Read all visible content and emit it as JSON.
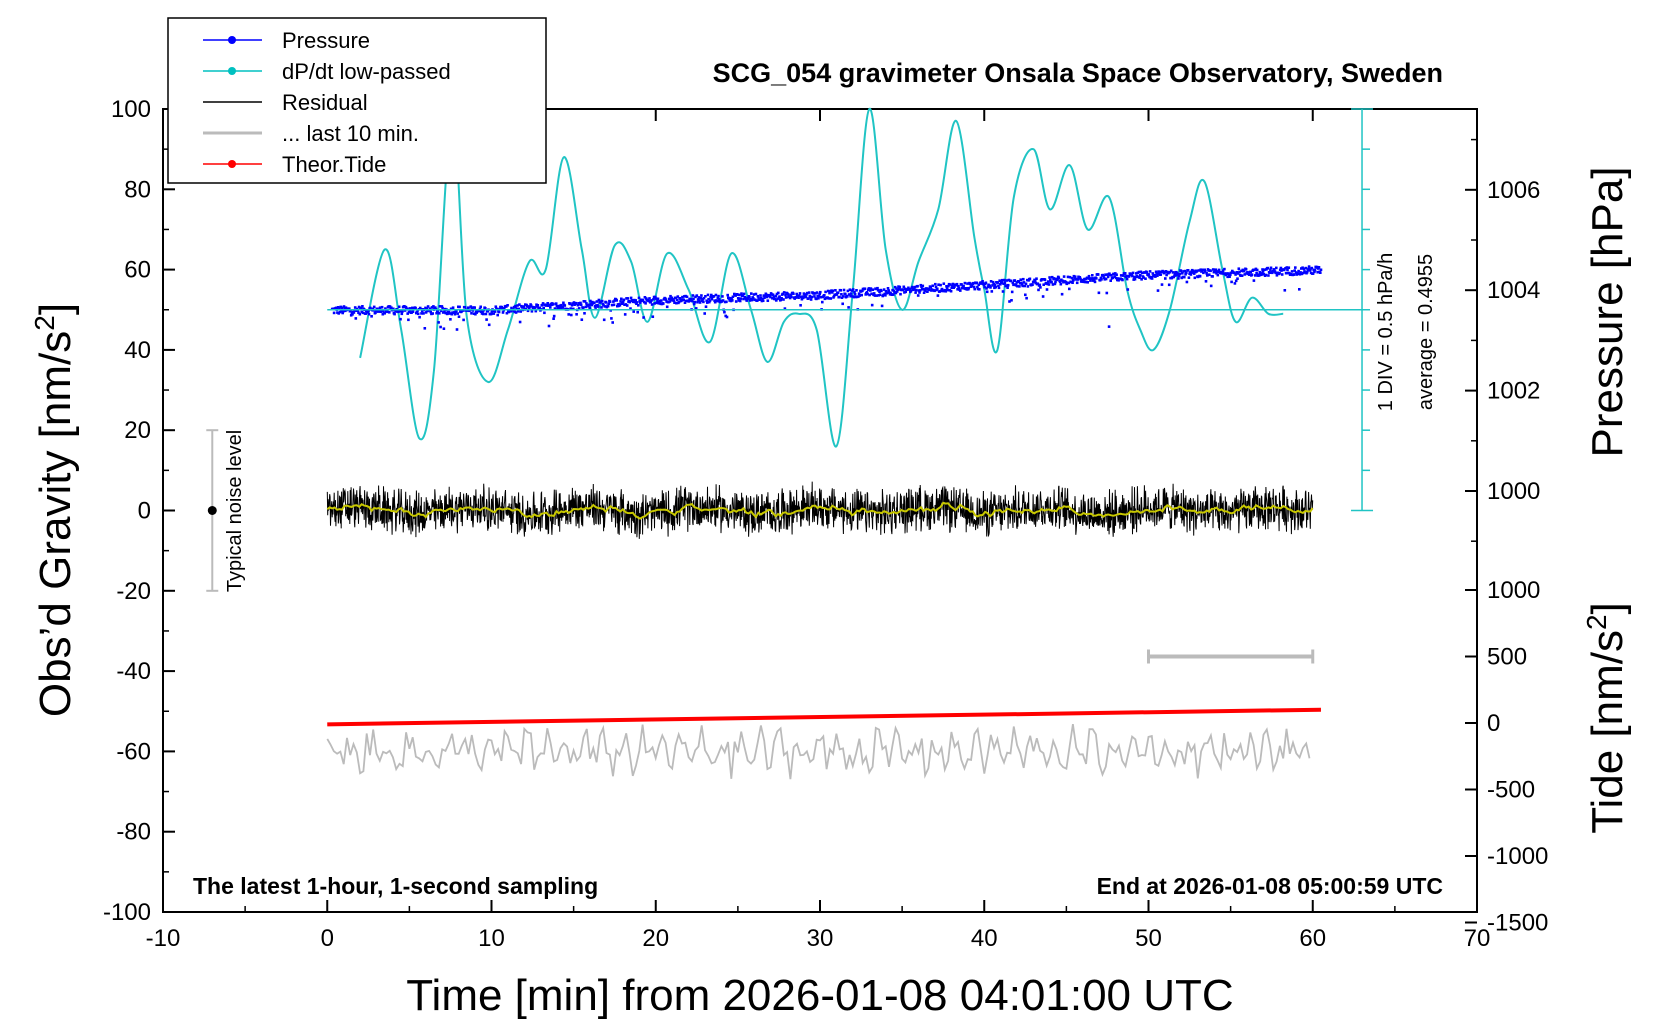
{
  "chart_data": {
    "type": "line",
    "title": "SCG_054 gravimeter Onsala Space Observatory, Sweden",
    "xlabel": "Time [min] from 2026-01-08 04:01:00 UTC",
    "ylabel_left": "Obs’d Gravity [nm/s",
    "ylabel_left_sup": "2",
    "ylabel_left_end": "]",
    "ylabel_right_top": "Pressure [hPa]",
    "ylabel_right_bottom": "Tide [nm/s",
    "ylabel_right_bottom_sup": "2",
    "ylabel_right_bottom_end": "]",
    "xlim": [
      -10,
      70
    ],
    "ylim": [
      -100,
      100
    ],
    "pressure_lim": [
      999,
      1007
    ],
    "tide_lim": [
      -1500,
      1500
    ],
    "x_ticks": [
      "-10",
      "0",
      "10",
      "20",
      "30",
      "40",
      "50",
      "60",
      "70"
    ],
    "x_tick_values": [
      -10,
      0,
      10,
      20,
      30,
      40,
      50,
      60,
      70
    ],
    "y_ticks": [
      "100",
      "80",
      "60",
      "40",
      "20",
      "0",
      "-20",
      "-40",
      "-60",
      "-80",
      "-100"
    ],
    "y_tick_values": [
      100,
      80,
      60,
      40,
      20,
      0,
      -20,
      -40,
      -60,
      -80,
      -100
    ],
    "pressure_ticks": [
      "1006",
      "1004",
      "1002",
      "1000"
    ],
    "pressure_tick_values": [
      1006,
      1004,
      1002,
      1000
    ],
    "tide_ticks": [
      "1000",
      "500",
      "0",
      "-500",
      "-1000",
      "-1500"
    ],
    "tide_tick_values": [
      1000,
      500,
      0,
      -500,
      -1000,
      -1500
    ],
    "legend": [
      {
        "label": "Pressure",
        "color": "#0000ff",
        "marker": true
      },
      {
        "label": "dP/dt low-passed",
        "color": "#00c0c0",
        "marker": true
      },
      {
        "label": "Residual",
        "color": "#000000",
        "marker": false
      },
      {
        "label": "... last 10 min.",
        "color": "#bbbbbb",
        "marker": false
      },
      {
        "label": "Theor.Tide",
        "color": "#ff0000",
        "marker": true
      }
    ],
    "colors": {
      "pressure": "#0000ff",
      "dpdt": "#20c4c4",
      "residual": "#000000",
      "residual_smooth": "#c8c800",
      "last10": "#bbbbbb",
      "tide": "#ff0000",
      "noise_bar": "#bbbbbb"
    },
    "series": [
      {
        "name": "Pressure",
        "unit": "hPa",
        "x": [
          0.5,
          10,
          20,
          30,
          40,
          50,
          60.5
        ],
        "values": [
          1003.6,
          1003.6,
          1003.8,
          1003.9,
          1004.1,
          1004.3,
          1004.4
        ]
      },
      {
        "name": "dP/dt low-passed",
        "unit": "gravity-axis units (1 DIV = 0.5 hPa/h)",
        "x": [
          2.0,
          3.5,
          4.5,
          5.6,
          6.5,
          7.6,
          8.5,
          9.8,
          11.0,
          12.3,
          13.3,
          14.4,
          15.5,
          16.3,
          17.5,
          18.5,
          19.5,
          20.7,
          22.0,
          23.3,
          24.6,
          25.8,
          26.8,
          27.8,
          28.7,
          29.8,
          31.0,
          32.0,
          33.0,
          34.0,
          35.0,
          36.0,
          37.2,
          38.3,
          39.4,
          40.0,
          40.8,
          41.8,
          43.0,
          44.0,
          45.2,
          46.3,
          47.6,
          48.7,
          49.5,
          50.3,
          51.3,
          52.5,
          53.4,
          54.5,
          55.3,
          56.3,
          57.3,
          58.2
        ],
        "values": [
          38,
          65,
          45,
          18,
          35,
          98,
          48,
          32,
          45,
          62,
          60,
          88,
          65,
          48,
          66,
          62,
          47,
          64,
          55,
          42,
          64,
          50,
          37,
          47,
          49,
          45,
          16,
          55,
          100,
          65,
          50,
          62,
          75,
          97,
          68,
          55,
          40,
          78,
          90,
          75,
          86,
          70,
          78,
          55,
          45,
          40,
          50,
          72,
          82,
          60,
          47,
          53,
          49,
          49
        ]
      },
      {
        "name": "Residual",
        "unit": "nm/s2",
        "x": [
          0,
          60
        ],
        "values": [
          0,
          0
        ],
        "noise_amplitude": 5
      },
      {
        "name": "... last 10 min.",
        "unit": "nm/s2",
        "offset": -60,
        "x": [
          0,
          60
        ],
        "values": [
          -60,
          -60
        ]
      },
      {
        "name": "Theor.Tide",
        "unit": "nm/s2",
        "x": [
          0,
          60.5
        ],
        "values": [
          -10,
          100
        ]
      }
    ],
    "noise_label": "Typical noise level",
    "noise_range": [
      -20,
      20
    ],
    "noise_x": -7,
    "div_label": "1 DIV = 0.5 hPa/h",
    "average_label": "average = 0.4955",
    "average_line_value": 50,
    "last10_bar": [
      50,
      60
    ],
    "last10_bar_tide": 500,
    "footer_left": "The latest 1-hour, 1-second sampling",
    "footer_right": "End at 2026-01-08 05:00:59 UTC"
  }
}
